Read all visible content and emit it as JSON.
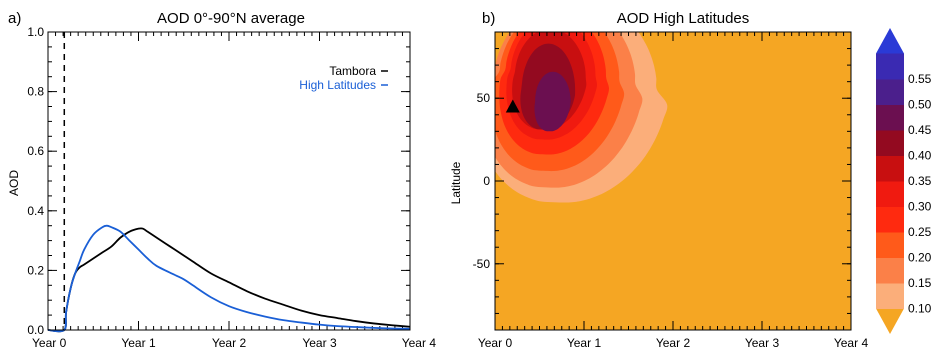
{
  "chart_data": [
    {
      "panel": "a)",
      "type": "line",
      "title": "AOD  0°-90°N average",
      "ylabel": "AOD",
      "xlabel": "",
      "ylim": [
        0.0,
        1.0
      ],
      "xlim": [
        0.0,
        4.0
      ],
      "xticks": [
        0,
        1,
        2,
        3,
        4
      ],
      "xticklabels": [
        "Year 0",
        "Year 1",
        "Year 2",
        "Year 3",
        "Year 4"
      ],
      "yticks": [
        0.0,
        0.2,
        0.4,
        0.6,
        0.8,
        1.0
      ],
      "yticklabels": [
        "0.0",
        "0.2",
        "0.4",
        "0.6",
        "0.8",
        "1.0"
      ],
      "eruption_line_x": 0.18,
      "legend_position": "top-right",
      "series": [
        {
          "name": "Tambora",
          "color": "#000000",
          "x": [
            0.0,
            0.18,
            0.2,
            0.25,
            0.3,
            0.35,
            0.4,
            0.5,
            0.6,
            0.7,
            0.8,
            0.9,
            1.0,
            1.05,
            1.1,
            1.2,
            1.3,
            1.4,
            1.5,
            1.6,
            1.8,
            2.0,
            2.2,
            2.4,
            2.6,
            2.8,
            3.0,
            3.2,
            3.4,
            3.6,
            3.8,
            4.0
          ],
          "y": [
            0.0,
            0.0,
            0.06,
            0.14,
            0.19,
            0.21,
            0.22,
            0.24,
            0.26,
            0.28,
            0.31,
            0.33,
            0.34,
            0.34,
            0.33,
            0.31,
            0.29,
            0.27,
            0.25,
            0.23,
            0.19,
            0.16,
            0.13,
            0.105,
            0.085,
            0.065,
            0.05,
            0.04,
            0.03,
            0.022,
            0.016,
            0.011
          ]
        },
        {
          "name": "High Latitudes",
          "color": "#1a5fd6",
          "x": [
            0.0,
            0.18,
            0.2,
            0.25,
            0.3,
            0.35,
            0.4,
            0.5,
            0.6,
            0.65,
            0.7,
            0.8,
            0.9,
            1.0,
            1.1,
            1.2,
            1.4,
            1.5,
            1.6,
            1.8,
            2.0,
            2.2,
            2.4,
            2.6,
            2.8,
            3.0,
            3.2,
            3.4,
            3.6,
            3.8,
            4.0
          ],
          "y": [
            0.0,
            0.0,
            0.06,
            0.14,
            0.19,
            0.23,
            0.27,
            0.32,
            0.345,
            0.35,
            0.345,
            0.33,
            0.3,
            0.27,
            0.24,
            0.215,
            0.185,
            0.17,
            0.15,
            0.11,
            0.08,
            0.06,
            0.045,
            0.033,
            0.025,
            0.018,
            0.013,
            0.01,
            0.007,
            0.005,
            0.004
          ]
        }
      ]
    },
    {
      "panel": "b)",
      "type": "heatmap",
      "title": "AOD High Latitudes",
      "ylabel": "Latitude",
      "xlabel": "",
      "xlim": [
        0.0,
        4.0
      ],
      "ylim": [
        -90,
        90
      ],
      "xticks": [
        0,
        1,
        2,
        3,
        4
      ],
      "xticklabels": [
        "Year 0",
        "Year 1",
        "Year 2",
        "Year 3",
        "Year 4"
      ],
      "yticks": [
        -50,
        0,
        50
      ],
      "yticklabels": [
        "-50",
        "0",
        "50"
      ],
      "background_level_color": "#f5a623",
      "eruption_marker": {
        "x": 0.2,
        "y": 45,
        "shape": "triangle"
      },
      "colorbar": {
        "levels": [
          0.1,
          0.15,
          0.2,
          0.25,
          0.3,
          0.35,
          0.4,
          0.45,
          0.5,
          0.55
        ],
        "labels": [
          "0.10",
          "0.15",
          "0.20",
          "0.25",
          "0.30",
          "0.35",
          "0.40",
          "0.45",
          "0.50",
          "0.55"
        ],
        "colors": [
          "#f5a623",
          "#fbae7a",
          "#fb8048",
          "#ff5a1a",
          "#ff2a0f",
          "#f01a10",
          "#c80f10",
          "#930a20",
          "#6b0f50",
          "#4b1f8c",
          "#3a2ab2",
          "#2a3ad6"
        ]
      },
      "contours": [
        {
          "level": 0.1,
          "center": [
            0.9,
            55
          ],
          "rx": 0.92,
          "ry_up": 55,
          "ry_down": 68,
          "skew": 0.15
        },
        {
          "level": 0.15,
          "center": [
            0.78,
            58
          ],
          "rx": 0.8,
          "ry_up": 50,
          "ry_down": 62,
          "skew": 0.12
        },
        {
          "level": 0.2,
          "center": [
            0.72,
            60
          ],
          "rx": 0.68,
          "ry_up": 45,
          "ry_down": 54,
          "skew": 0.1
        },
        {
          "level": 0.25,
          "center": [
            0.68,
            62
          ],
          "rx": 0.57,
          "ry_up": 40,
          "ry_down": 46,
          "skew": 0.08
        },
        {
          "level": 0.3,
          "center": [
            0.65,
            63
          ],
          "rx": 0.48,
          "ry_up": 35,
          "ry_down": 38,
          "skew": 0.06
        },
        {
          "level": 0.35,
          "center": [
            0.62,
            62
          ],
          "rx": 0.4,
          "ry_up": 30,
          "ry_down": 31,
          "skew": 0.04
        },
        {
          "level": 0.4,
          "center": [
            0.6,
            55
          ],
          "rx": 0.3,
          "ry_up": 28,
          "ry_down": 24,
          "skew": 0.02
        },
        {
          "level": 0.45,
          "center": [
            0.65,
            48
          ],
          "rx": 0.2,
          "ry_up": 18,
          "ry_down": 18,
          "skew": 0.0
        }
      ]
    }
  ]
}
